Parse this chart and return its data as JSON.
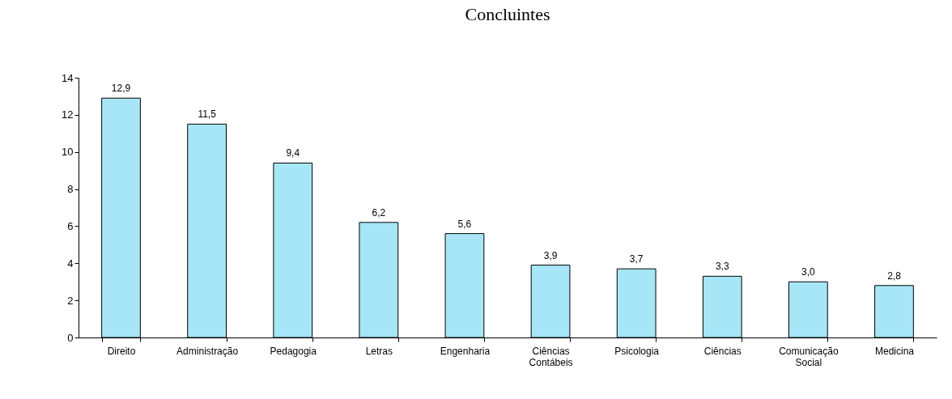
{
  "chart_data": {
    "type": "bar",
    "title": "Concluintes",
    "categories": [
      "Direito",
      "Administração",
      "Pedagogia",
      "Letras",
      "Engenharia",
      "Ciências Contábeis",
      "Psicologia",
      "Ciências",
      "Comunicação Social",
      "Medicina"
    ],
    "values": [
      12.9,
      11.5,
      9.4,
      6.2,
      5.6,
      3.9,
      3.7,
      3.3,
      3.0,
      2.8
    ],
    "value_labels": [
      "12,9",
      "11,5",
      "9,4",
      "6,2",
      "5,6",
      "3,9",
      "3,7",
      "3,3",
      "3,0",
      "2,8"
    ],
    "color": "#a6e6f7",
    "ylim": [
      0,
      14
    ],
    "yticks": [
      0,
      2,
      4,
      6,
      8,
      10,
      12,
      14
    ],
    "grid": false
  }
}
